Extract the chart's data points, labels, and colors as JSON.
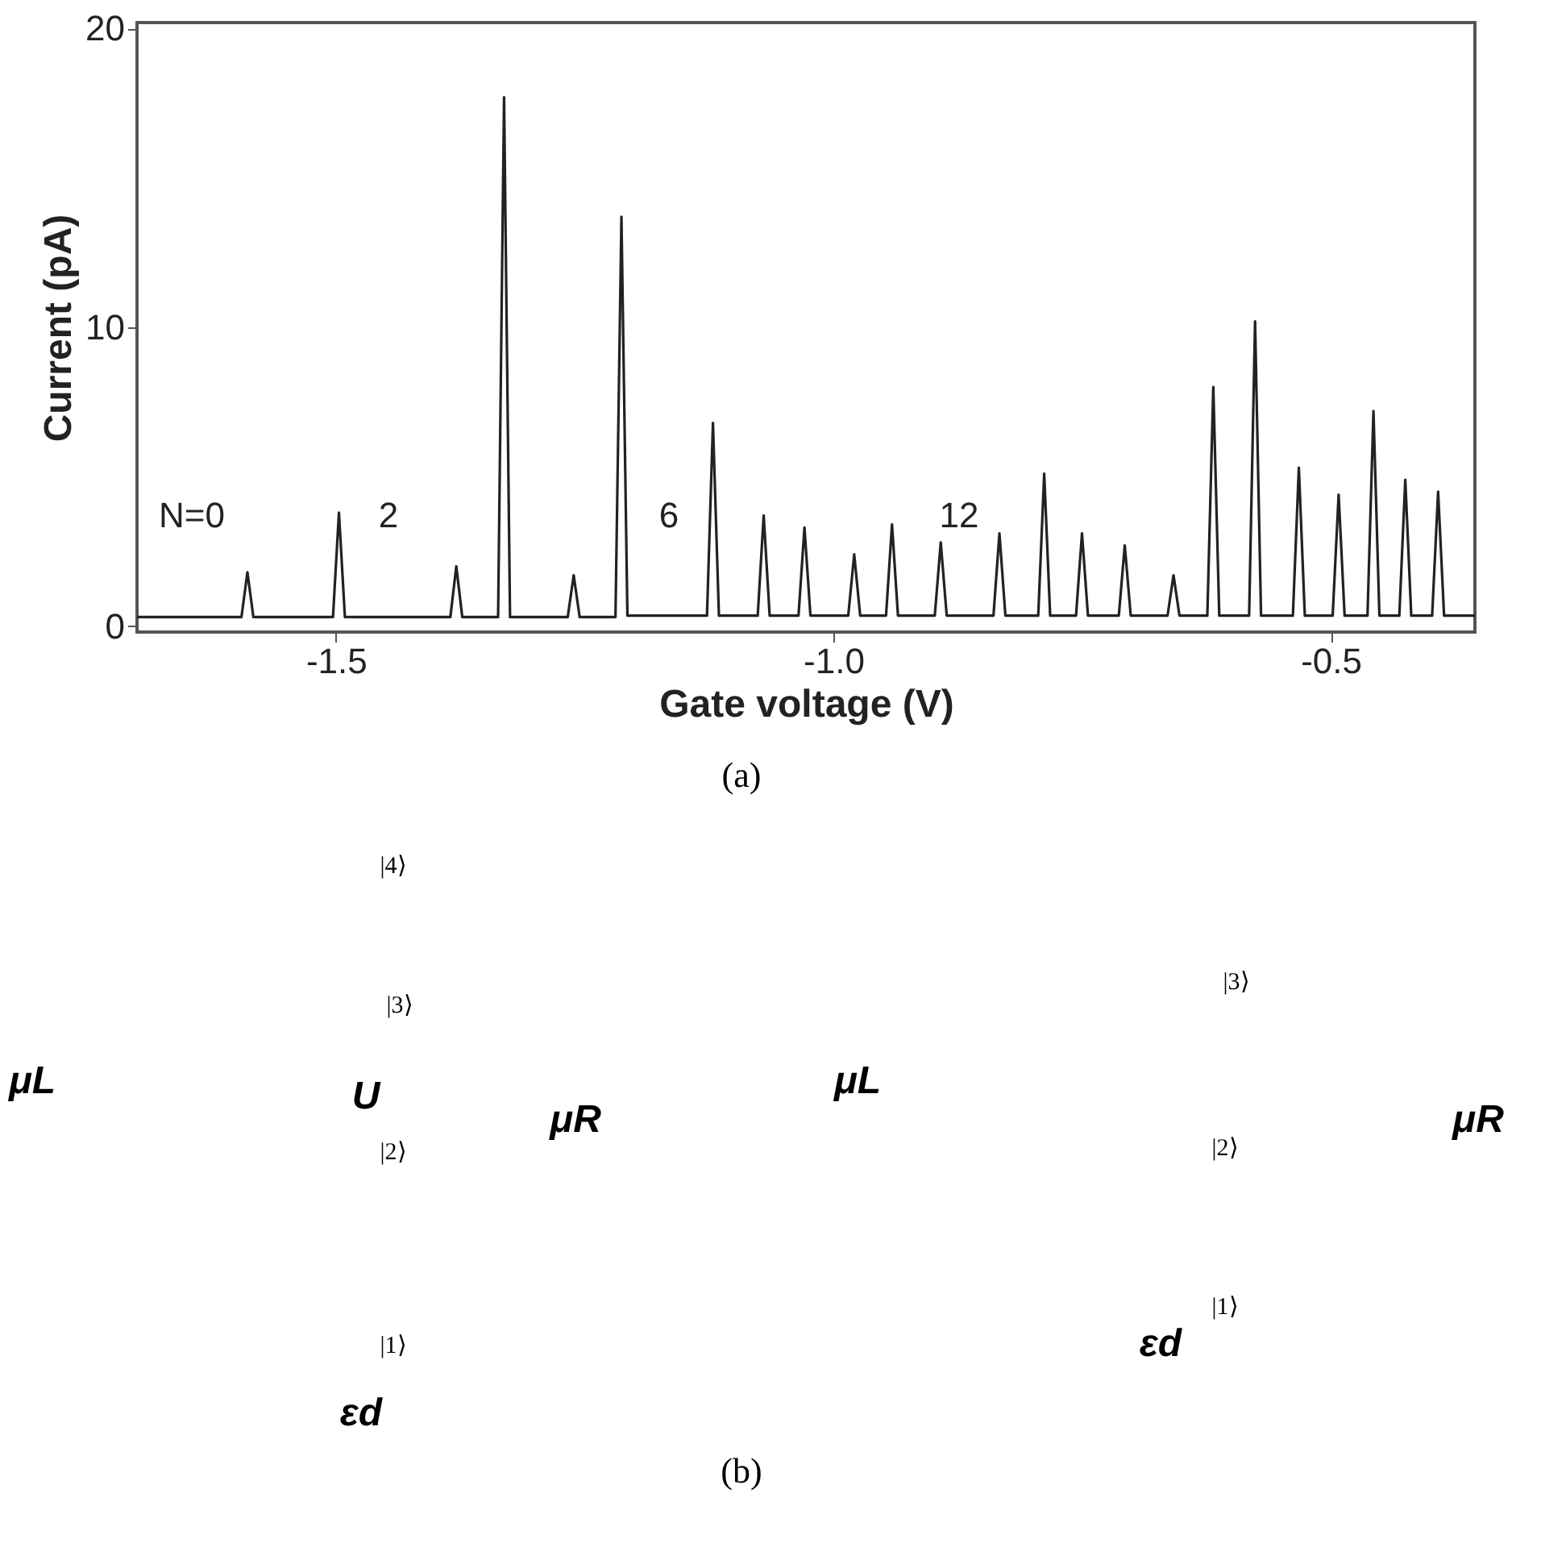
{
  "chart_data": [
    {
      "type": "line",
      "xlabel": "Gate voltage  (V)",
      "ylabel": "Current  (pA)",
      "xlim": [
        -1.7,
        -0.355
      ],
      "ylim": [
        -0.2,
        20.2
      ],
      "xticks": [
        {
          "value": -1.5,
          "label": "-1.5"
        },
        {
          "value": -1.0,
          "label": "-1.0"
        },
        {
          "value": -0.5,
          "label": "-0.5"
        }
      ],
      "yticks": [
        0,
        10,
        20
      ],
      "grid": false,
      "marker": "none",
      "line_style": "solid",
      "series": [
        {
          "color": "#222222",
          "x": [
            -1.7,
            -1.595,
            -1.589,
            -1.583,
            -1.503,
            -1.497,
            -1.491,
            -1.385,
            -1.379,
            -1.373,
            -1.337,
            -1.331,
            -1.325,
            -1.267,
            -1.261,
            -1.255,
            -1.219,
            -1.213,
            -1.207,
            -1.127,
            -1.121,
            -1.115,
            -1.076,
            -1.07,
            -1.064,
            -1.035,
            -1.029,
            -1.023,
            -0.985,
            -0.979,
            -0.973,
            -0.947,
            -0.941,
            -0.935,
            -0.898,
            -0.892,
            -0.886,
            -0.839,
            -0.833,
            -0.827,
            -0.794,
            -0.788,
            -0.782,
            -0.756,
            -0.75,
            -0.744,
            -0.713,
            -0.707,
            -0.701,
            -0.664,
            -0.658,
            -0.652,
            -0.624,
            -0.618,
            -0.612,
            -0.582,
            -0.576,
            -0.57,
            -0.538,
            -0.532,
            -0.526,
            -0.498,
            -0.492,
            -0.486,
            -0.463,
            -0.457,
            -0.451,
            -0.431,
            -0.425,
            -0.419,
            -0.398,
            -0.392,
            -0.386,
            -0.355
          ],
          "values": [
            0.3,
            0.3,
            1.8,
            0.3,
            0.3,
            3.8,
            0.3,
            0.3,
            2.0,
            0.3,
            0.3,
            17.7,
            0.3,
            0.3,
            1.7,
            0.3,
            0.3,
            13.7,
            0.35,
            0.35,
            6.8,
            0.35,
            0.35,
            3.7,
            0.35,
            0.35,
            3.3,
            0.35,
            0.35,
            2.4,
            0.35,
            0.35,
            3.4,
            0.35,
            0.35,
            2.8,
            0.35,
            0.35,
            3.1,
            0.35,
            0.35,
            5.1,
            0.35,
            0.35,
            3.1,
            0.35,
            0.35,
            2.7,
            0.35,
            0.35,
            1.7,
            0.35,
            0.35,
            8.0,
            0.35,
            0.35,
            10.2,
            0.35,
            0.35,
            5.3,
            0.35,
            0.35,
            4.4,
            0.35,
            0.35,
            7.2,
            0.35,
            0.35,
            4.9,
            0.35,
            0.35,
            4.5,
            0.35,
            0.35
          ]
        }
      ],
      "annotations": [
        "N=0",
        "2",
        "6",
        "12"
      ]
    },
    {
      "type": "other",
      "annotations": [
        "(a)",
        "|4⟩",
        "|3⟩",
        "μL",
        "U",
        "|2⟩",
        "μR",
        "|1⟩",
        "εd",
        "|3⟩",
        "μL",
        "|2⟩",
        "μR",
        "|1⟩",
        "εd",
        "(b)"
      ]
    }
  ]
}
